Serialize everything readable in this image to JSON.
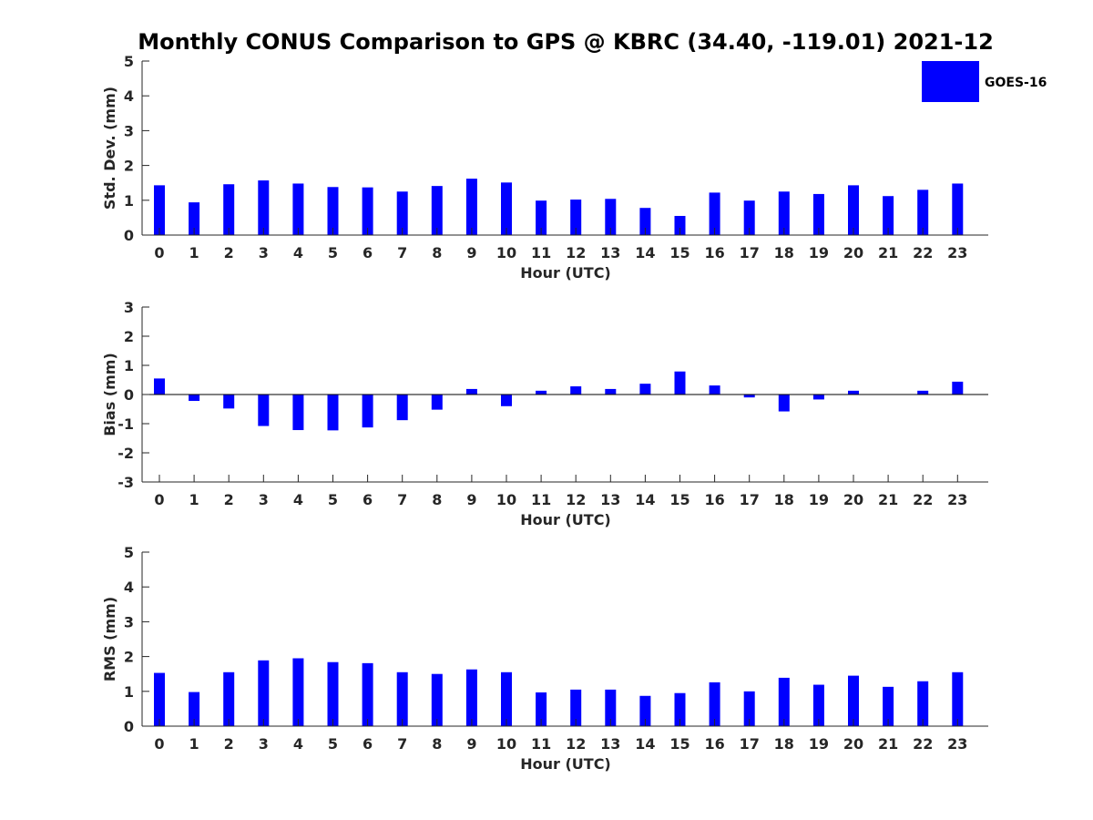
{
  "title": "Monthly CONUS Comparison to GPS @ KBRC (34.40, -119.01) 2021-12",
  "legend": {
    "label": "GOES-16",
    "color": "#0000ff",
    "placement": "top-right"
  },
  "chart_data": [
    {
      "type": "bar",
      "name": "std-dev",
      "xlabel": "Hour (UTC)",
      "ylabel": "Std. Dev. (mm)",
      "ylim": [
        0,
        5
      ],
      "yticks": [
        "0",
        "1",
        "2",
        "3",
        "4",
        "5"
      ],
      "categories": [
        "0",
        "1",
        "2",
        "3",
        "4",
        "5",
        "6",
        "7",
        "8",
        "9",
        "10",
        "11",
        "12",
        "13",
        "14",
        "15",
        "16",
        "17",
        "18",
        "19",
        "20",
        "21",
        "22",
        "23"
      ],
      "series": [
        {
          "name": "GOES-16",
          "values": [
            1.43,
            0.94,
            1.46,
            1.57,
            1.48,
            1.38,
            1.37,
            1.25,
            1.41,
            1.62,
            1.51,
            0.99,
            1.02,
            1.04,
            0.78,
            0.55,
            1.22,
            0.99,
            1.25,
            1.18,
            1.43,
            1.12,
            1.3,
            1.48
          ]
        }
      ]
    },
    {
      "type": "bar",
      "name": "bias",
      "xlabel": "Hour (UTC)",
      "ylabel": "Bias (mm)",
      "ylim": [
        -3,
        3
      ],
      "yticks": [
        "-3",
        "-2",
        "-1",
        "0",
        "1",
        "2",
        "3"
      ],
      "categories": [
        "0",
        "1",
        "2",
        "3",
        "4",
        "5",
        "6",
        "7",
        "8",
        "9",
        "10",
        "11",
        "12",
        "13",
        "14",
        "15",
        "16",
        "17",
        "18",
        "19",
        "20",
        "21",
        "22",
        "23"
      ],
      "series": [
        {
          "name": "GOES-16",
          "values": [
            0.55,
            -0.22,
            -0.48,
            -1.08,
            -1.22,
            -1.23,
            -1.13,
            -0.88,
            -0.52,
            0.19,
            -0.4,
            0.13,
            0.28,
            0.19,
            0.37,
            0.79,
            0.31,
            -0.1,
            -0.58,
            -0.17,
            0.13,
            0.0,
            0.13,
            0.44
          ]
        }
      ]
    },
    {
      "type": "bar",
      "name": "rms",
      "xlabel": "Hour (UTC)",
      "ylabel": "RMS (mm)",
      "ylim": [
        0,
        5
      ],
      "yticks": [
        "0",
        "1",
        "2",
        "3",
        "4",
        "5"
      ],
      "categories": [
        "0",
        "1",
        "2",
        "3",
        "4",
        "5",
        "6",
        "7",
        "8",
        "9",
        "10",
        "11",
        "12",
        "13",
        "14",
        "15",
        "16",
        "17",
        "18",
        "19",
        "20",
        "21",
        "22",
        "23"
      ],
      "series": [
        {
          "name": "GOES-16",
          "values": [
            1.53,
            0.98,
            1.55,
            1.89,
            1.95,
            1.84,
            1.81,
            1.55,
            1.5,
            1.63,
            1.55,
            0.97,
            1.05,
            1.05,
            0.87,
            0.95,
            1.26,
            1.0,
            1.39,
            1.19,
            1.45,
            1.13,
            1.29,
            1.55
          ]
        }
      ]
    }
  ]
}
